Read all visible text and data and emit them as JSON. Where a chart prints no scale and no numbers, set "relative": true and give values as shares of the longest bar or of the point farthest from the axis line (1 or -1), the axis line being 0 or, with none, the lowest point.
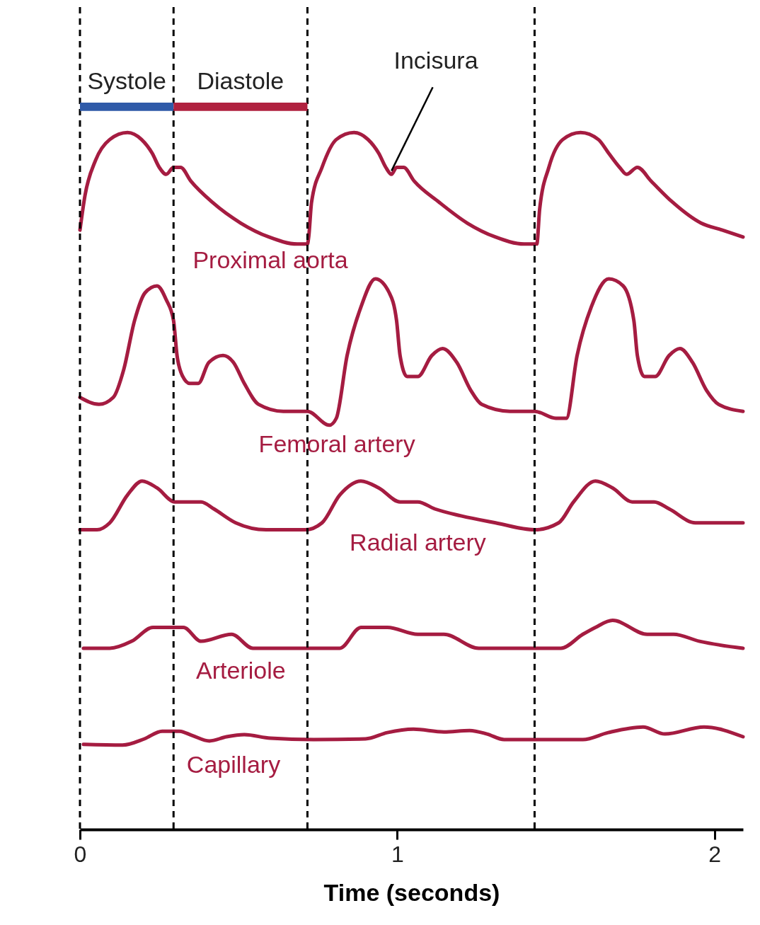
{
  "chart_data": {
    "type": "line",
    "relative": true,
    "xlabel": "Time (seconds)",
    "xlim": [
      0,
      2.09
    ],
    "xticks": [
      0,
      1,
      2
    ],
    "series": [
      {
        "name": "Proximal aorta",
        "color": "#a51c41",
        "x": [
          0,
          0.016,
          0.049,
          0.094,
          0.15,
          0.194,
          0.228,
          0.25,
          0.272,
          0.295,
          0.317,
          0.35,
          0.417,
          0.507,
          0.596,
          0.685,
          0.717,
          0.721,
          0.73,
          0.763,
          0.808,
          0.864,
          0.908,
          0.942,
          0.964,
          0.982,
          0.998,
          1.02,
          1.054,
          1.132,
          1.221,
          1.31,
          1.4,
          1.433,
          1.44,
          1.449,
          1.478,
          1.522,
          1.578,
          1.634,
          1.667,
          1.701,
          1.723,
          1.757,
          1.801,
          1.868,
          1.958,
          2.025,
          2.09
        ],
        "values": [
          0.86,
          0.91,
          0.96,
          0.99,
          1,
          0.99,
          0.97,
          0.95,
          0.94,
          0.95,
          0.95,
          0.93,
          0.9,
          0.87,
          0.85,
          0.84,
          0.84,
          0.85,
          0.9,
          0.95,
          0.99,
          1,
          0.99,
          0.97,
          0.95,
          0.94,
          0.95,
          0.95,
          0.93,
          0.9,
          0.87,
          0.85,
          0.84,
          0.84,
          0.84,
          0.89,
          0.95,
          0.99,
          1,
          0.99,
          0.97,
          0.95,
          0.94,
          0.95,
          0.93,
          0.9,
          0.87,
          0.86,
          0.85
        ]
      },
      {
        "name": "Femoral artery",
        "color": "#a51c41",
        "x": [
          0,
          0.06,
          0.105,
          0.138,
          0.172,
          0.205,
          0.243,
          0.272,
          0.295,
          0.306,
          0.324,
          0.346,
          0.373,
          0.406,
          0.451,
          0.484,
          0.518,
          0.563,
          0.641,
          0.717,
          0.786,
          0.808,
          0.842,
          0.886,
          0.931,
          0.975,
          0.998,
          1.009,
          1.031,
          1.065,
          1.109,
          1.143,
          1.188,
          1.232,
          1.266,
          1.355,
          1.433,
          1.5,
          1.533,
          1.567,
          1.612,
          1.667,
          1.712,
          1.746,
          1.757,
          1.779,
          1.813,
          1.857,
          1.891,
          1.931,
          1.975,
          2.013,
          2.09
        ],
        "values": [
          0.62,
          0.61,
          0.62,
          0.66,
          0.73,
          0.77,
          0.78,
          0.76,
          0.73,
          0.68,
          0.65,
          0.64,
          0.64,
          0.67,
          0.68,
          0.67,
          0.64,
          0.61,
          0.6,
          0.6,
          0.58,
          0.59,
          0.68,
          0.75,
          0.79,
          0.77,
          0.73,
          0.68,
          0.65,
          0.65,
          0.68,
          0.69,
          0.67,
          0.63,
          0.61,
          0.6,
          0.6,
          0.59,
          0.59,
          0.68,
          0.75,
          0.79,
          0.78,
          0.73,
          0.68,
          0.65,
          0.65,
          0.68,
          0.69,
          0.67,
          0.63,
          0.61,
          0.6
        ]
      },
      {
        "name": "Radial artery",
        "color": "#a51c41",
        "x": [
          0,
          0.054,
          0.094,
          0.15,
          0.196,
          0.243,
          0.299,
          0.382,
          0.422,
          0.491,
          0.587,
          0.71,
          0.763,
          0.819,
          0.886,
          0.942,
          1.009,
          1.065,
          1.118,
          1.201,
          1.31,
          1.433,
          1.509,
          1.556,
          1.625,
          1.679,
          1.741,
          1.81,
          1.857,
          1.94,
          2.022,
          2.09
        ],
        "values": [
          0.43,
          0.43,
          0.44,
          0.48,
          0.5,
          0.49,
          0.47,
          0.47,
          0.46,
          0.44,
          0.43,
          0.43,
          0.44,
          0.48,
          0.5,
          0.49,
          0.47,
          0.47,
          0.46,
          0.45,
          0.44,
          0.43,
          0.44,
          0.47,
          0.5,
          0.49,
          0.47,
          0.47,
          0.46,
          0.44,
          0.44,
          0.44
        ]
      },
      {
        "name": "Arteriole",
        "color": "#a51c41",
        "x": [
          0.011,
          0.094,
          0.163,
          0.23,
          0.286,
          0.326,
          0.382,
          0.478,
          0.545,
          0.654,
          0.819,
          0.886,
          0.969,
          1.065,
          1.147,
          1.257,
          1.516,
          1.585,
          1.625,
          1.679,
          1.788,
          1.871,
          1.953,
          2.09
        ],
        "values": [
          0.26,
          0.26,
          0.27,
          0.29,
          0.29,
          0.29,
          0.27,
          0.28,
          0.26,
          0.26,
          0.26,
          0.29,
          0.29,
          0.28,
          0.28,
          0.26,
          0.26,
          0.28,
          0.29,
          0.3,
          0.28,
          0.28,
          0.27,
          0.26
        ]
      },
      {
        "name": "Capillary",
        "color": "#a51c41",
        "x": [
          0.011,
          0.134,
          0.203,
          0.259,
          0.313,
          0.353,
          0.408,
          0.462,
          0.518,
          0.6,
          0.737,
          0.9,
          0.969,
          1.051,
          1.147,
          1.228,
          1.283,
          1.337,
          1.585,
          1.665,
          1.775,
          1.844,
          1.967,
          2.09
        ],
        "values": [
          0.122,
          0.121,
          0.13,
          0.141,
          0.141,
          0.135,
          0.127,
          0.133,
          0.136,
          0.131,
          0.129,
          0.13,
          0.139,
          0.144,
          0.14,
          0.142,
          0.137,
          0.129,
          0.129,
          0.139,
          0.147,
          0.137,
          0.147,
          0.133
        ]
      }
    ],
    "ref_lines": [
      {
        "axis": "x",
        "value": 0,
        "color": "#000000",
        "line_style": "dashed"
      },
      {
        "axis": "x",
        "value": 0.295,
        "color": "#000000",
        "line_style": "dashed"
      },
      {
        "axis": "x",
        "value": 0.717,
        "color": "#000000",
        "line_style": "dashed"
      },
      {
        "axis": "x",
        "value": 1.433,
        "color": "#000000",
        "line_style": "dashed"
      }
    ],
    "annotations": [
      "Systole",
      "Diastole",
      {
        "text": "Incisura",
        "x": 0.982,
        "y": 0.945
      }
    ]
  }
}
